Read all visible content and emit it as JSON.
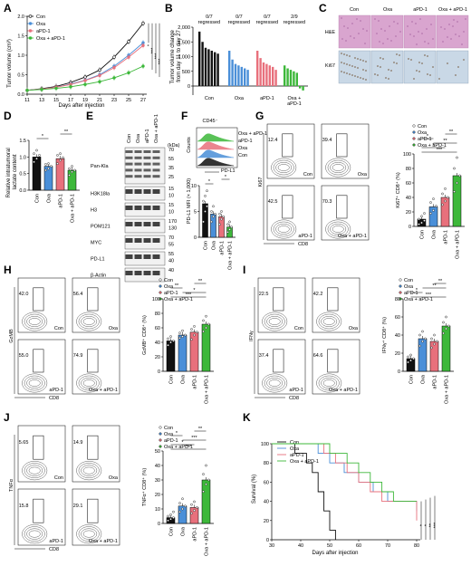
{
  "colors": {
    "con": "#111111",
    "oxa": "#4a8fd8",
    "apd1": "#e8707c",
    "combo": "#3db83a",
    "gate": "#222222",
    "he": "#d9a5cf",
    "ki67bg": "#c9d8e6"
  },
  "panel_labels": [
    "A",
    "B",
    "C",
    "D",
    "E",
    "F",
    "G",
    "H",
    "I",
    "J",
    "K"
  ],
  "groups": [
    "Con",
    "Oxa",
    "aPD-1",
    "Oxa + aPD-1"
  ],
  "panel_a": {
    "ylabel": "Tumor volume (cm³)",
    "xlabel": "Days after injection",
    "yticks": [
      "0.0",
      "0.5",
      "1.0",
      "1.5",
      "2.0"
    ],
    "xticks": [
      "11",
      "13",
      "15",
      "17",
      "19",
      "21",
      "23",
      "25",
      "27"
    ],
    "sig": [
      "*",
      "***",
      "***",
      "***"
    ]
  },
  "panel_b": {
    "ylabel": "Tumor volume change\nfrom day 11 to day 27",
    "yticks": [
      "0",
      "500",
      "1,000",
      "1,500",
      "2,000"
    ],
    "regressed": [
      "0/7\nregressed",
      "0/7\nregressed",
      "0/7\nregressed",
      "2/9\nregressed"
    ],
    "xlabels": [
      "Con",
      "Oxa",
      "aPD-1",
      "Oxa +\naPD-1"
    ]
  },
  "panel_c": {
    "cols": [
      "Con",
      "Oxa",
      "aPD-1",
      "Oxa + aPD-1"
    ],
    "rows": [
      "H&E",
      "Ki67"
    ]
  },
  "panel_d": {
    "ylabel": "Relative intratumoral\nlactate content",
    "yticks": [
      "0.0",
      "0.5",
      "1.0",
      "1.5"
    ],
    "sig": [
      "*",
      "**"
    ]
  },
  "panel_e": {
    "header": [
      "Con",
      "Oxa",
      "aPD-1",
      "Oxa + aPD-1"
    ],
    "kda": "(kDa)",
    "rows": [
      {
        "name": "Pan-Kla",
        "kda": [
          "70",
          "55",
          "35",
          "25"
        ]
      },
      {
        "name": "H3K18la",
        "kda": [
          "15",
          "10"
        ]
      },
      {
        "name": "H3",
        "kda": [
          "15",
          "10"
        ]
      },
      {
        "name": "POM121",
        "kda": [
          "170",
          "130"
        ]
      },
      {
        "name": "MYC",
        "kda": [
          "70",
          "55"
        ]
      },
      {
        "name": "PD-L1",
        "kda": [
          "55",
          "40"
        ]
      },
      {
        "name": "β-Actin",
        "kda": [
          "40"
        ]
      }
    ]
  },
  "panel_f": {
    "title": "CD45⁻",
    "hist_labels": [
      "Oxa + aPD-1",
      "aPD-1",
      "Oxa",
      "Con"
    ],
    "xlabel": "PD-L1",
    "ylabel_hist": "Counts",
    "ylabel": "PD-L1 MFI (× 1,000)",
    "yticks": [
      "0",
      "5",
      "10"
    ],
    "sig": [
      "*",
      "*"
    ]
  },
  "panel_g": {
    "values": [
      "12.4",
      "39.4",
      "42.5",
      "70.3"
    ],
    "names": [
      "Con",
      "Oxa",
      "aPD-1",
      "Oxa + aPD-1"
    ],
    "xaxis": "CD8",
    "yaxis": "Ki67",
    "ylabel": "Ki67⁺ CD8⁺ (%)",
    "yticks": [
      "0",
      "20",
      "40",
      "60",
      "80",
      "100"
    ],
    "sig": [
      "***",
      "*",
      "**",
      "*",
      "**"
    ]
  },
  "panel_h": {
    "values": [
      "42.0",
      "56.4",
      "55.0",
      "74.9"
    ],
    "names": [
      "Con",
      "Oxa",
      "aPD-1",
      "Oxa + aPD-1"
    ],
    "xaxis": "CD8",
    "yaxis": "GzMB",
    "ylabel": "GzMB⁺ CD8⁺ (%)",
    "yticks": [
      "0",
      "20",
      "40",
      "60",
      "80",
      "100"
    ],
    "sig": [
      "***",
      "*",
      "**",
      "**"
    ]
  },
  "panel_i": {
    "values": [
      "22.5",
      "42.2",
      "37.4",
      "64.6"
    ],
    "names": [
      "Con",
      "Oxa",
      "aPD-1",
      "Oxa + aPD-1"
    ],
    "xaxis": "CD8",
    "yaxis": "IFNγ",
    "ylabel": "IFNγ⁺ CD8⁺ (%)",
    "yticks": [
      "0",
      "20",
      "40",
      "60",
      "80"
    ],
    "sig": [
      "***",
      "*",
      "**",
      "**"
    ]
  },
  "panel_j": {
    "values": [
      "5.65",
      "14.9",
      "15.8",
      "29.1"
    ],
    "names": [
      "Con",
      "Oxa",
      "aPD-1",
      "Oxa + aPD-1"
    ],
    "xaxis": "CD8",
    "yaxis": "TNFα",
    "ylabel": "TNFα⁺ CD8⁺ (%)",
    "yticks": [
      "0",
      "10",
      "20",
      "30",
      "40",
      "50"
    ],
    "sig": [
      "***",
      "*",
      "***",
      "*",
      "**"
    ]
  },
  "panel_k": {
    "ylabel": "Survival (%)",
    "xlabel": "Days after injection",
    "yticks": [
      "0",
      "20",
      "40",
      "60",
      "80",
      "100"
    ],
    "xticks": [
      "30",
      "40",
      "50",
      "60",
      "70",
      "80"
    ],
    "sig": [
      "*",
      "*",
      "**",
      "***"
    ]
  },
  "chart_data": [
    {
      "panel": "A",
      "type": "line",
      "x": [
        11,
        13,
        15,
        17,
        19,
        21,
        23,
        25,
        27
      ],
      "ylim": [
        0,
        2.0
      ],
      "series": [
        {
          "name": "Con",
          "values": [
            0.1,
            0.14,
            0.2,
            0.3,
            0.44,
            0.62,
            0.95,
            1.35,
            1.82
          ]
        },
        {
          "name": "Oxa",
          "values": [
            0.1,
            0.13,
            0.18,
            0.26,
            0.36,
            0.5,
            0.72,
            1.0,
            1.32
          ]
        },
        {
          "name": "aPD-1",
          "values": [
            0.1,
            0.13,
            0.18,
            0.25,
            0.35,
            0.48,
            0.68,
            0.95,
            1.25
          ]
        },
        {
          "name": "Oxa + aPD-1",
          "values": [
            0.1,
            0.12,
            0.15,
            0.19,
            0.25,
            0.32,
            0.42,
            0.55,
            0.72
          ]
        }
      ]
    },
    {
      "panel": "B",
      "type": "bar",
      "ylim": [
        -250,
        2000
      ],
      "series": [
        {
          "name": "Con",
          "values": [
            1850,
            1500,
            1300,
            1250,
            1200,
            1150,
            1100
          ]
        },
        {
          "name": "Oxa",
          "values": [
            1200,
            900,
            750,
            700,
            650,
            600,
            550
          ]
        },
        {
          "name": "aPD-1",
          "values": [
            1200,
            950,
            800,
            750,
            700,
            650,
            550
          ]
        },
        {
          "name": "Oxa + aPD-1",
          "values": [
            700,
            600,
            550,
            500,
            450,
            -80,
            -150
          ]
        }
      ]
    },
    {
      "panel": "D",
      "type": "bar",
      "categories": [
        "Con",
        "Oxa",
        "aPD-1",
        "Oxa + aPD-1"
      ],
      "values": [
        1.0,
        0.72,
        0.95,
        0.6
      ],
      "ylim": [
        0,
        1.5
      ],
      "points": [
        [
          0.85,
          0.95,
          1.05,
          1.1,
          1.2
        ],
        [
          0.6,
          0.65,
          0.72,
          0.78,
          0.8
        ],
        [
          0.8,
          0.9,
          0.98,
          1.05,
          1.1
        ],
        [
          0.45,
          0.55,
          0.6,
          0.65,
          0.72
        ]
      ]
    },
    {
      "panel": "F",
      "type": "bar",
      "categories": [
        "Con",
        "Oxa",
        "aPD-1",
        "Oxa + aPD-1"
      ],
      "values": [
        6.5,
        4.5,
        4.0,
        2.0
      ],
      "ylim": [
        0,
        10
      ],
      "points": [
        [
          3,
          5,
          6,
          7,
          8,
          9
        ],
        [
          3,
          4,
          4.5,
          5,
          6
        ],
        [
          2.5,
          3.5,
          4,
          4.5,
          5
        ],
        [
          1,
          1.5,
          2,
          2.5,
          3
        ]
      ]
    },
    {
      "panel": "G",
      "type": "bar",
      "categories": [
        "Con",
        "Oxa",
        "aPD-1",
        "Oxa + aPD-1"
      ],
      "values": [
        10,
        27,
        40,
        70
      ],
      "ylim": [
        0,
        100
      ],
      "points": [
        [
          3,
          5,
          8,
          10,
          14,
          18
        ],
        [
          18,
          22,
          28,
          33,
          38
        ],
        [
          30,
          35,
          40,
          45,
          52
        ],
        [
          48,
          60,
          70,
          80,
          95
        ]
      ]
    },
    {
      "panel": "H",
      "type": "bar",
      "categories": [
        "Con",
        "Oxa",
        "aPD-1",
        "Oxa + aPD-1"
      ],
      "values": [
        42,
        50,
        54,
        65
      ],
      "ylim": [
        0,
        100
      ],
      "points": [
        [
          36,
          40,
          42,
          45,
          48
        ],
        [
          46,
          48,
          50,
          53,
          56
        ],
        [
          44,
          50,
          54,
          58,
          62
        ],
        [
          55,
          60,
          65,
          70,
          76
        ]
      ]
    },
    {
      "panel": "I",
      "type": "bar",
      "categories": [
        "Con",
        "Oxa",
        "aPD-1",
        "Oxa + aPD-1"
      ],
      "values": [
        14,
        36,
        33,
        50
      ],
      "ylim": [
        0,
        80
      ],
      "points": [
        [
          10,
          12,
          14,
          16,
          18
        ],
        [
          28,
          33,
          36,
          40,
          44
        ],
        [
          26,
          30,
          33,
          36,
          40
        ],
        [
          42,
          47,
          50,
          54,
          60
        ]
      ]
    },
    {
      "panel": "J",
      "type": "bar",
      "categories": [
        "Con",
        "Oxa",
        "aPD-1",
        "Oxa + aPD-1"
      ],
      "values": [
        4,
        12,
        11,
        30
      ],
      "ylim": [
        0,
        50
      ],
      "points": [
        [
          2,
          3,
          4,
          5,
          6,
          8
        ],
        [
          8,
          10,
          12,
          14,
          17
        ],
        [
          7,
          9,
          11,
          13,
          15
        ],
        [
          22,
          27,
          30,
          34,
          40
        ]
      ]
    },
    {
      "panel": "K",
      "type": "line",
      "xlim": [
        30,
        80
      ],
      "ylim": [
        0,
        100
      ],
      "series": [
        {
          "name": "Con",
          "x": [
            30,
            38,
            42,
            44,
            46,
            48,
            50,
            52
          ],
          "values": [
            100,
            90,
            80,
            70,
            50,
            30,
            10,
            0
          ]
        },
        {
          "name": "Oxa",
          "x": [
            30,
            46,
            50,
            55,
            60,
            65,
            70,
            80
          ],
          "values": [
            100,
            90,
            80,
            70,
            60,
            50,
            40,
            30
          ]
        },
        {
          "name": "aPD-1",
          "x": [
            30,
            48,
            52,
            56,
            60,
            64,
            68,
            80
          ],
          "values": [
            100,
            90,
            80,
            70,
            60,
            50,
            40,
            20
          ]
        },
        {
          "name": "Oxa + aPD-1",
          "x": [
            30,
            50,
            56,
            60,
            64,
            68,
            72,
            80
          ],
          "values": [
            100,
            90,
            80,
            70,
            60,
            50,
            40,
            40
          ]
        }
      ]
    }
  ]
}
